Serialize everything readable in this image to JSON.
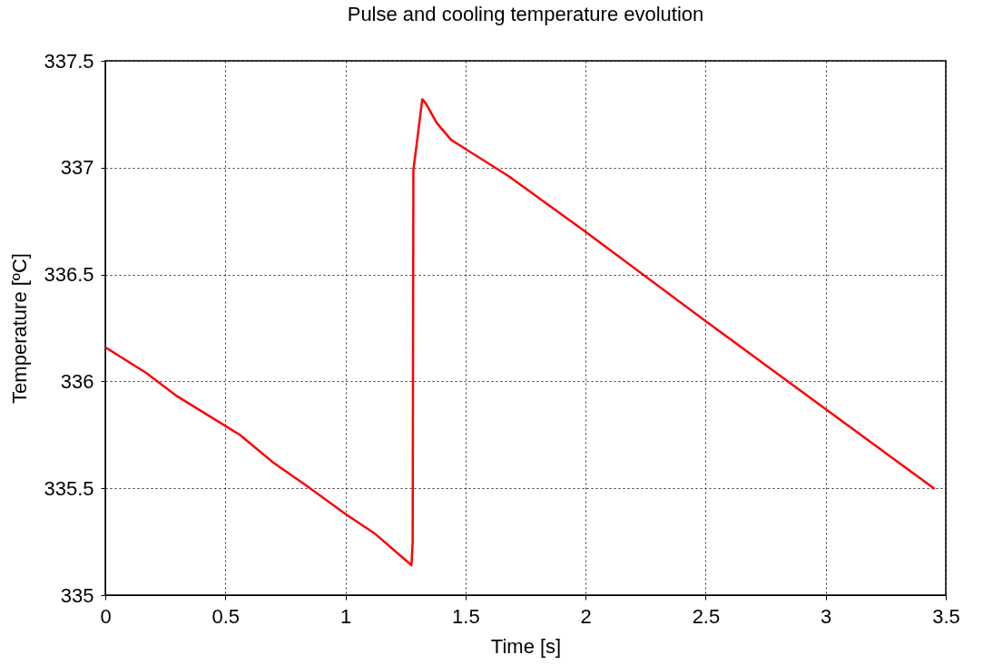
{
  "chart_data": {
    "type": "line",
    "title": "Pulse and cooling temperature evolution",
    "xlabel": "Time [s]",
    "ylabel": "Temperature [ºC]",
    "xlim": [
      0,
      3.5
    ],
    "ylim": [
      335,
      337.5
    ],
    "xticks": [
      0,
      0.5,
      1,
      1.5,
      2,
      2.5,
      3,
      3.5
    ],
    "yticks": [
      335,
      335.5,
      336,
      336.5,
      337,
      337.5
    ],
    "grid": true,
    "marker": "none",
    "line_style": "solid",
    "series": [
      {
        "color": "#ff0000",
        "x": [
          0,
          0.17,
          0.3,
          0.56,
          0.7,
          0.84,
          1.0,
          1.12,
          1.275,
          1.28,
          1.283,
          1.3,
          1.32,
          1.335,
          1.38,
          1.44,
          1.68,
          2.0,
          2.49,
          3.0,
          3.45
        ],
        "values": [
          336.16,
          336.04,
          335.93,
          335.75,
          335.62,
          335.51,
          335.38,
          335.29,
          335.14,
          335.25,
          336.99,
          337.14,
          337.32,
          337.3,
          337.21,
          337.13,
          336.96,
          336.7,
          336.29,
          335.87,
          335.5
        ]
      }
    ]
  }
}
